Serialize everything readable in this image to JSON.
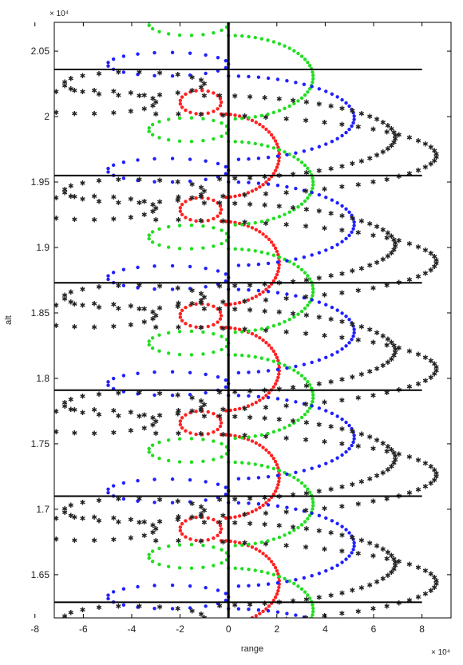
{
  "chart_data": {
    "type": "scatter",
    "title": "",
    "xlabel": "range",
    "ylabel": "alt",
    "x_exponent_label": "× 10⁴",
    "y_exponent_label": "× 10⁴",
    "xlim": [
      -7.2,
      9.2
    ],
    "ylim": [
      1.617,
      2.072
    ],
    "x_ticks": [
      -8,
      -6,
      -4,
      -2,
      0,
      2,
      4,
      6,
      8
    ],
    "x_tick_labels": [
      "-8",
      "-6",
      "-4",
      "-2",
      "0",
      "2",
      "4",
      "6",
      "8"
    ],
    "y_ticks": [
      1.65,
      1.7,
      1.75,
      1.8,
      1.85,
      1.9,
      1.95,
      2.0,
      2.05
    ],
    "y_tick_labels": [
      "1.65",
      "1.7",
      "1.75",
      "1.8",
      "1.85",
      "1.9",
      "1.95",
      "2",
      "2.05"
    ],
    "grid": false,
    "horizontal_lines": {
      "y": [
        2.036,
        1.955,
        1.873,
        1.791,
        1.71,
        1.629
      ],
      "x_from": -8,
      "x_to": 8,
      "color": "#000000"
    },
    "vertical_line": {
      "x": 0,
      "color": "#000000"
    },
    "series": [
      {
        "color": "#ff2020",
        "marker": "dot",
        "period": 0.0818,
        "anchors": [
          1.676,
          1.757,
          1.839,
          1.92,
          2.002
        ],
        "loop_x": [
          -2.0,
          -0.3
        ],
        "arc_x_max": 2.1,
        "arc_y_max": 2.072
      },
      {
        "color": "#22dd22",
        "marker": "dot",
        "period": 0.0818,
        "anchors": [
          1.655,
          1.736,
          1.818,
          1.899,
          1.981,
          2.062
        ],
        "loop_x": [
          -3.3,
          0.0
        ],
        "arc_x_max": 3.5,
        "arc_y_max": 2.072
      },
      {
        "color": "#2020ff",
        "marker": "dot",
        "period": 0.0818,
        "anchors": [
          1.624,
          1.705,
          1.787,
          1.868,
          1.95,
          2.031
        ],
        "loop_x": [
          -5.0,
          0.0
        ],
        "arc_x_max": 5.2,
        "arc_y_max": 2.072
      },
      {
        "color": "#22eeee",
        "marker": "star",
        "period": 0.0818,
        "anchors": [
          1.608,
          1.69,
          1.771,
          1.853,
          1.934,
          2.016
        ],
        "loop_x": [
          -6.8,
          -1.0
        ],
        "arc_x_max": 6.9,
        "arc_y_max": 2.072
      },
      {
        "color": "#ff22ff",
        "marker": "star",
        "period": 0.0818,
        "anchors": [
          1.595,
          1.676,
          1.758,
          1.839,
          1.921,
          2.002
        ],
        "loop_x": [
          -8.5,
          -3.0
        ],
        "arc_x_max": 8.6,
        "arc_y_max": 2.072
      }
    ]
  }
}
